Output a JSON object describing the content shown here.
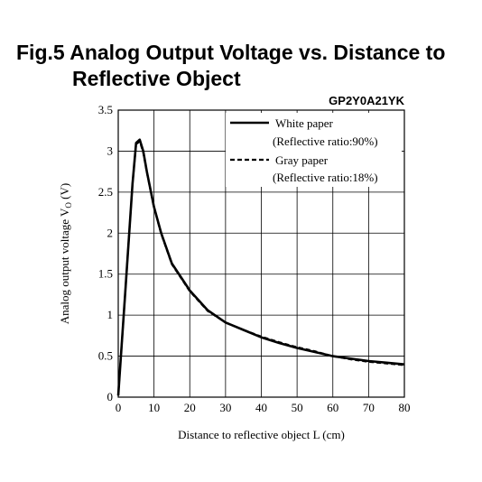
{
  "title_line1": "Fig.5 Analog Output Voltage vs. Distance to",
  "title_line2": "Reflective Object",
  "chart_data": {
    "type": "line",
    "model": "GP2Y0A21YK",
    "xlabel": "Distance to reflective object L (cm)",
    "ylabel": "Analog output voltage V",
    "ylabel_sub": "O",
    "ylabel_unit": " (V)",
    "xlim": [
      0,
      80
    ],
    "ylim": [
      0,
      3.5
    ],
    "xticks": [
      0,
      10,
      20,
      30,
      40,
      50,
      60,
      70,
      80
    ],
    "yticks": [
      0,
      0.5,
      1,
      1.5,
      2,
      2.5,
      3,
      3.5
    ],
    "grid": true,
    "legend_position": "top-right",
    "series": [
      {
        "name": "White paper",
        "note": "(Reflective ratio:90%)",
        "style": "solid",
        "x": [
          0,
          2,
          4,
          5,
          6,
          7,
          8,
          10,
          12,
          15,
          20,
          25,
          30,
          35,
          40,
          45,
          50,
          55,
          60,
          65,
          70,
          75,
          80
        ],
        "y": [
          0.02,
          1.3,
          2.6,
          3.1,
          3.14,
          3.0,
          2.75,
          2.32,
          2.0,
          1.63,
          1.3,
          1.06,
          0.91,
          0.82,
          0.73,
          0.66,
          0.6,
          0.55,
          0.5,
          0.47,
          0.44,
          0.42,
          0.4
        ]
      },
      {
        "name": "Gray paper",
        "note": "(Reflective ratio:18%)",
        "style": "dashed",
        "x": [
          0,
          2,
          4,
          5,
          6,
          7,
          8,
          10,
          12,
          15,
          20,
          25,
          30,
          35,
          40,
          45,
          50,
          55,
          60,
          65,
          70,
          75,
          80
        ],
        "y": [
          0.02,
          1.3,
          2.6,
          3.08,
          3.12,
          2.98,
          2.74,
          2.31,
          1.99,
          1.62,
          1.29,
          1.05,
          0.91,
          0.82,
          0.74,
          0.67,
          0.61,
          0.56,
          0.5,
          0.46,
          0.43,
          0.41,
          0.39
        ]
      }
    ]
  }
}
